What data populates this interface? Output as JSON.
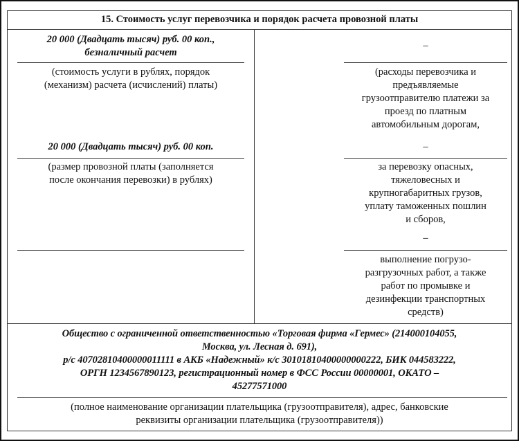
{
  "section_title": "15. Стоимость услуг перевозчика и порядок расчета провозной платы",
  "left": {
    "service_cost_value": [
      "20 000 (Двадцать тысяч) руб. 00 коп.,",
      "безналичный расчет"
    ],
    "service_cost_caption": [
      "(стоимость услуги в рублях, порядок",
      "(механизм) расчета (исчислений) платы)"
    ],
    "freight_fee_value": "20 000 (Двадцать тысяч) руб. 00 коп.",
    "freight_fee_caption": [
      "(размер провозной платы (заполняется",
      "после окончания перевозки) в рублях)"
    ]
  },
  "right": {
    "toll_value": "–",
    "toll_caption": [
      "(расходы перевозчика и",
      "предъявляемые",
      "грузоотправителю платежи за",
      "проезд по платным",
      "автомобильным дорогам,"
    ],
    "hazard_value": "–",
    "hazard_caption": [
      "за перевозку опасных,",
      "тяжеловесных и",
      "крупногабаритных грузов,",
      "уплату таможенных пошлин",
      "и сборов,"
    ],
    "loading_value": "–",
    "loading_caption": [
      "выполнение погрузо-",
      "разгрузочных работ, а также",
      "работ по промывке и",
      "дезинфекции транспортных",
      "средств)"
    ]
  },
  "payer": {
    "value": [
      "Общество с ограниченной ответственностью «Торговая фирма «Гермес» (214000104055,",
      "Москва, ул. Лесная д. 691),",
      "р/с 40702810400000011111 в АКБ «Надежный» к/с 30101810400000000222, БИК 044583222,",
      "ОРГН 1234567890123, регистрационный номер в ФСС России 00000001, ОКАТО –",
      "45277571000"
    ],
    "caption": [
      "(полное наименование организации плательщика (грузоотправителя), адрес, банковские",
      "реквизиты организации плательщика (грузоотправителя))"
    ]
  }
}
